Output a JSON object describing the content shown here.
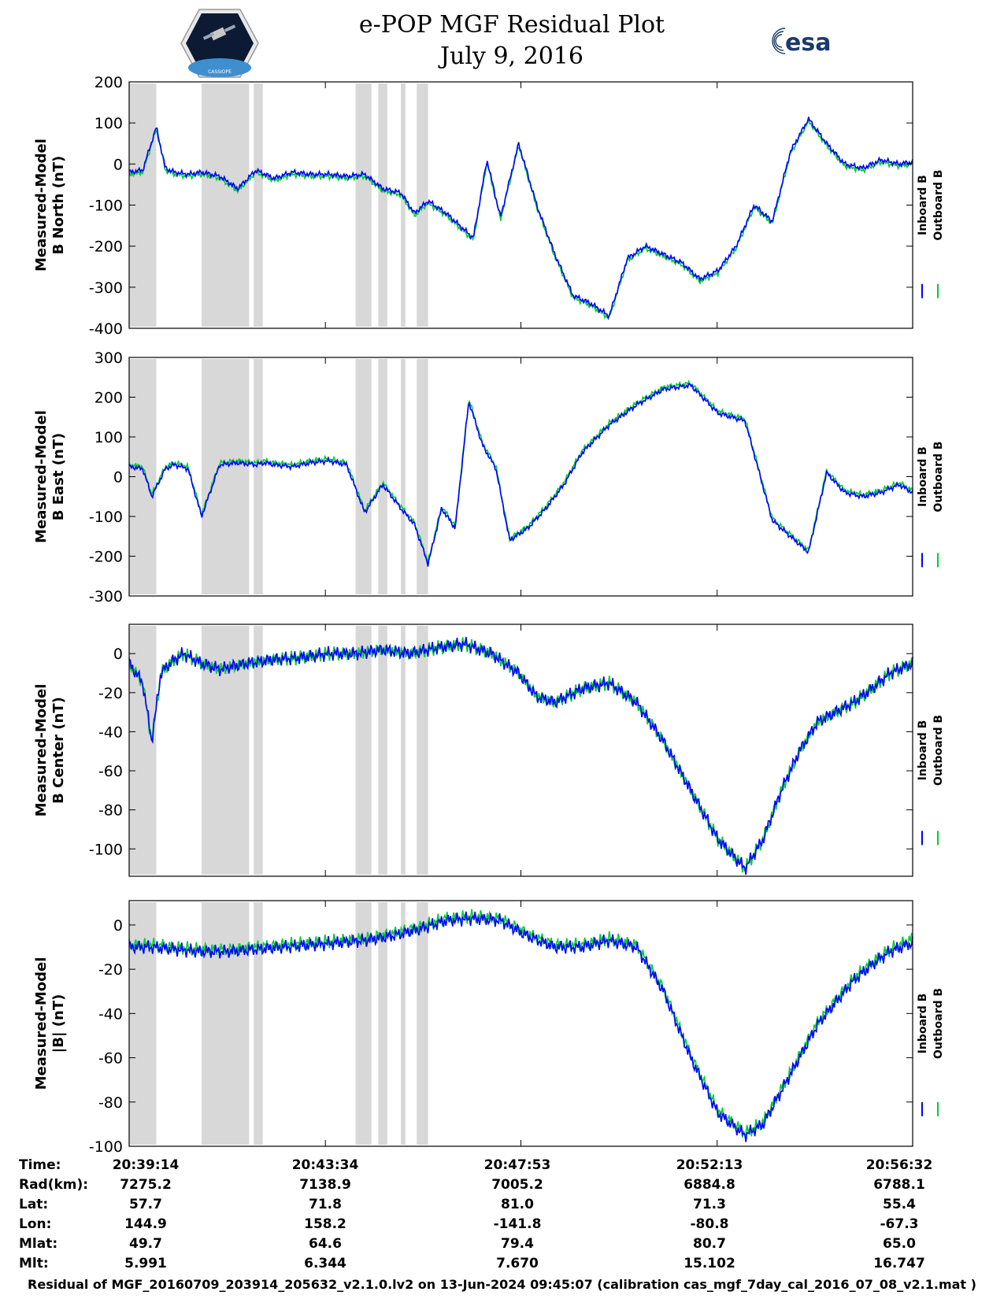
{
  "title": {
    "line1": "e-POP MGF Residual Plot",
    "line2": "July 9, 2016"
  },
  "logos": {
    "left": "CASSIOPE",
    "right": "esa"
  },
  "colors": {
    "inboard": "#0000ff",
    "outboard": "#00cc33",
    "gap": "#d8d8d8"
  },
  "legend": {
    "inboard": "Inboard B",
    "outboard": "Outboard B"
  },
  "chart_data": [
    {
      "type": "line",
      "ylabel_line1": "Measured-Model",
      "ylabel_line2": "B North (nT)",
      "ylim": [
        -400,
        200
      ],
      "yticks": [
        200,
        100,
        0,
        -100,
        -200,
        -300,
        -400
      ],
      "ytick_labels": [
        "200",
        "100",
        "0",
        "-100",
        "-200",
        "-300",
        "-400"
      ],
      "x_minutes": [
        0,
        0.3,
        0.6,
        0.8,
        1.0,
        1.3,
        1.6,
        2.0,
        2.4,
        2.8,
        3.2,
        3.6,
        4.0,
        4.4,
        4.8,
        5.2,
        5.6,
        6.0,
        6.3,
        6.6,
        7.0,
        7.3,
        7.6,
        7.9,
        8.2,
        8.6,
        9.0,
        9.4,
        9.8,
        10.2,
        10.6,
        11.0,
        11.4,
        11.8,
        12.2,
        12.6,
        13.0,
        13.4,
        13.8,
        14.2,
        14.6,
        15.0,
        15.4,
        15.8,
        16.2,
        16.6,
        17.0,
        17.3
      ],
      "inboard": [
        -20,
        -15,
        90,
        -10,
        -20,
        -25,
        -20,
        -30,
        -60,
        -15,
        -35,
        -20,
        -25,
        -25,
        -30,
        -25,
        -60,
        -70,
        -120,
        -90,
        -120,
        -150,
        -180,
        10,
        -130,
        50,
        -100,
        -220,
        -320,
        -340,
        -370,
        -230,
        -200,
        -220,
        -240,
        -280,
        -260,
        -200,
        -100,
        -140,
        30,
        110,
        50,
        0,
        -10,
        10,
        0,
        5
      ],
      "outboard": [
        -25,
        -20,
        85,
        -15,
        -25,
        -30,
        -25,
        -35,
        -65,
        -20,
        -40,
        -25,
        -30,
        -30,
        -35,
        -30,
        -65,
        -75,
        -125,
        -95,
        -125,
        -155,
        -185,
        5,
        -135,
        45,
        -105,
        -225,
        -325,
        -345,
        -375,
        -235,
        -205,
        -225,
        -245,
        -285,
        -265,
        -205,
        -105,
        -145,
        25,
        105,
        45,
        -5,
        -15,
        5,
        -5,
        0
      ]
    },
    {
      "type": "line",
      "ylabel_line1": "Measured-Model",
      "ylabel_line2": "B East (nT)",
      "ylim": [
        -300,
        300
      ],
      "yticks": [
        300,
        200,
        100,
        0,
        -100,
        -200,
        -300
      ],
      "ytick_labels": [
        "300",
        "200",
        "100",
        "0",
        "-100",
        "-200",
        "-300"
      ],
      "x_minutes": [
        0,
        0.3,
        0.5,
        0.8,
        1.0,
        1.3,
        1.6,
        2.0,
        2.4,
        2.8,
        3.0,
        3.2,
        3.6,
        4.0,
        4.4,
        4.8,
        5.2,
        5.6,
        6.0,
        6.3,
        6.6,
        6.9,
        7.2,
        7.5,
        7.8,
        8.1,
        8.4,
        8.8,
        9.2,
        9.6,
        10.0,
        10.6,
        11.2,
        11.8,
        12.4,
        13.0,
        13.6,
        14.2,
        14.6,
        15.0,
        15.4,
        15.8,
        16.2,
        16.6,
        17.0,
        17.3
      ],
      "inboard": [
        25,
        20,
        -50,
        20,
        30,
        20,
        -100,
        30,
        35,
        30,
        35,
        30,
        25,
        35,
        40,
        30,
        -90,
        -20,
        -80,
        -120,
        -220,
        -80,
        -130,
        190,
        80,
        20,
        -160,
        -130,
        -80,
        -20,
        60,
        130,
        180,
        220,
        230,
        160,
        140,
        -110,
        -150,
        -190,
        10,
        -40,
        -50,
        -40,
        -20,
        -40
      ],
      "outboard": [
        30,
        25,
        -45,
        25,
        35,
        25,
        -95,
        35,
        40,
        35,
        40,
        35,
        30,
        40,
        45,
        35,
        -85,
        -15,
        -75,
        -115,
        -215,
        -75,
        -125,
        195,
        85,
        25,
        -155,
        -125,
        -75,
        -15,
        65,
        135,
        185,
        225,
        235,
        165,
        145,
        -105,
        -145,
        -185,
        15,
        -35,
        -45,
        -35,
        -15,
        -35
      ]
    },
    {
      "type": "line",
      "ylabel_line1": "Measured-Model",
      "ylabel_line2": "B Center (nT)",
      "ylim": [
        -114,
        15
      ],
      "yticks": [
        0,
        -20,
        -40,
        -60,
        -80,
        -100
      ],
      "ytick_labels": [
        "0",
        "-20",
        "-40",
        "-60",
        "-80",
        "-100"
      ],
      "x_minutes": [
        0,
        0.3,
        0.5,
        0.7,
        0.9,
        1.2,
        1.6,
        2.0,
        2.6,
        3.2,
        3.8,
        4.4,
        5.0,
        5.6,
        6.2,
        6.8,
        7.4,
        8.0,
        8.6,
        9.0,
        9.4,
        10.0,
        10.6,
        11.2,
        11.8,
        12.4,
        13.0,
        13.6,
        14.0,
        14.4,
        14.8,
        15.2,
        15.6,
        16.0,
        16.4,
        16.8,
        17.3
      ],
      "inboard": [
        -5,
        -15,
        -45,
        -10,
        -5,
        0,
        -5,
        -8,
        -5,
        -3,
        -2,
        0,
        0,
        2,
        0,
        3,
        5,
        0,
        -10,
        -22,
        -25,
        -18,
        -15,
        -25,
        -45,
        -70,
        -95,
        -110,
        -95,
        -70,
        -50,
        -35,
        -30,
        -25,
        -18,
        -10,
        -5
      ],
      "outboard": [
        -5,
        -15,
        -45,
        -10,
        -5,
        0,
        -5,
        -8,
        -5,
        -3,
        -2,
        0,
        0,
        2,
        0,
        3,
        5,
        0,
        -10,
        -22,
        -25,
        -18,
        -15,
        -25,
        -45,
        -70,
        -95,
        -110,
        -95,
        -70,
        -50,
        -35,
        -30,
        -25,
        -18,
        -10,
        -5
      ]
    },
    {
      "type": "line",
      "ylabel_line1": "Measured-Model",
      "ylabel_line2": "|B| (nT)",
      "ylim": [
        -100,
        11
      ],
      "yticks": [
        0,
        -20,
        -40,
        -60,
        -80,
        -100
      ],
      "ytick_labels": [
        "0",
        "-20",
        "-40",
        "-60",
        "-80",
        "-100"
      ],
      "x_minutes": [
        0,
        0.5,
        1.0,
        1.6,
        2.2,
        2.8,
        3.4,
        4.0,
        4.6,
        5.2,
        5.8,
        6.4,
        7.0,
        7.6,
        8.2,
        8.8,
        9.4,
        10.0,
        10.6,
        11.2,
        11.8,
        12.4,
        13.0,
        13.6,
        14.0,
        14.4,
        14.8,
        15.2,
        15.6,
        16.0,
        16.4,
        16.8,
        17.3
      ],
      "inboard": [
        -10,
        -10,
        -11,
        -12,
        -12,
        -11,
        -10,
        -9,
        -8,
        -7,
        -5,
        -2,
        2,
        3,
        2,
        -5,
        -10,
        -10,
        -7,
        -10,
        -30,
        -60,
        -85,
        -95,
        -90,
        -75,
        -60,
        -45,
        -35,
        -25,
        -18,
        -12,
        -8
      ],
      "outboard": [
        -9,
        -9,
        -10,
        -11,
        -11,
        -10,
        -9,
        -8,
        -7,
        -6,
        -4,
        -1,
        3,
        4,
        3,
        -4,
        -9,
        -9,
        -6,
        -9,
        -29,
        -59,
        -84,
        -94,
        -89,
        -74,
        -59,
        -44,
        -34,
        -24,
        -17,
        -11,
        -6
      ]
    }
  ],
  "x_range_minutes": [
    0,
    17.3
  ],
  "gap_intervals_minutes": [
    [
      0.0,
      0.6
    ],
    [
      1.6,
      2.65
    ],
    [
      2.75,
      2.95
    ],
    [
      5.0,
      5.35
    ],
    [
      5.5,
      5.7
    ],
    [
      6.0,
      6.1
    ],
    [
      6.35,
      6.6
    ]
  ],
  "xtick_minutes": [
    0,
    4.333,
    8.65,
    12.983,
    17.3
  ],
  "ephemeris": {
    "labels": [
      "Time:",
      "Rad(km):",
      "Lat:",
      "Lon:",
      "Mlat:",
      "Mlt:"
    ],
    "columns": [
      [
        "20:39:14",
        "7275.2",
        "57.7",
        "144.9",
        "49.7",
        "5.991"
      ],
      [
        "20:43:34",
        "7138.9",
        "71.8",
        "158.2",
        "64.6",
        "6.344"
      ],
      [
        "20:47:53",
        "7005.2",
        "81.0",
        "-141.8",
        "79.4",
        "7.670"
      ],
      [
        "20:52:13",
        "6884.8",
        "71.3",
        "-80.8",
        "80.7",
        "15.102"
      ],
      [
        "20:56:32",
        "6788.1",
        "55.4",
        "-67.3",
        "65.0",
        "16.747"
      ]
    ]
  },
  "footer": "Residual of MGF_20160709_203914_205632_v2.1.0.lv2 on 13-Jun-2024 09:45:07 (calibration cas_mgf_7day_cal_2016_07_08_v2.1.mat )"
}
